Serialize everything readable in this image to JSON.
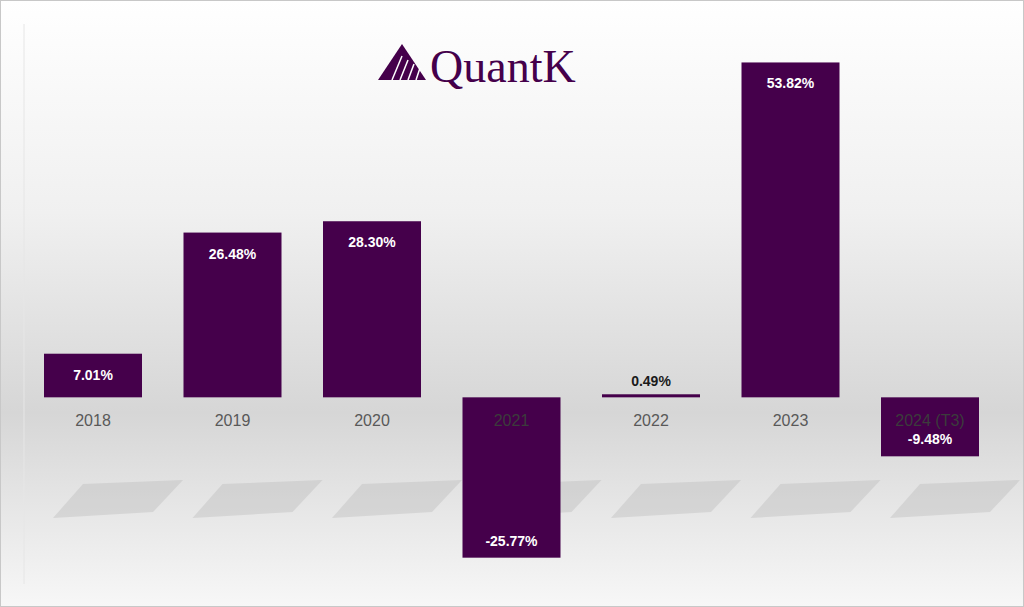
{
  "chart_data": {
    "type": "bar",
    "title": "QuantK",
    "categories": [
      "2018",
      "2019",
      "2020",
      "2021",
      "2022",
      "2023",
      "2024 (T3)"
    ],
    "values": [
      7.01,
      26.48,
      28.3,
      -25.77,
      0.49,
      53.82,
      -9.48
    ],
    "value_labels": [
      "7.01%",
      "26.48%",
      "28.30%",
      "-25.77%",
      "0.49%",
      "53.82%",
      "-9.48%"
    ],
    "color": "#45004b",
    "ylim": [
      -30,
      60
    ],
    "data_labels": true,
    "tick_labels": "x",
    "grid": false
  }
}
